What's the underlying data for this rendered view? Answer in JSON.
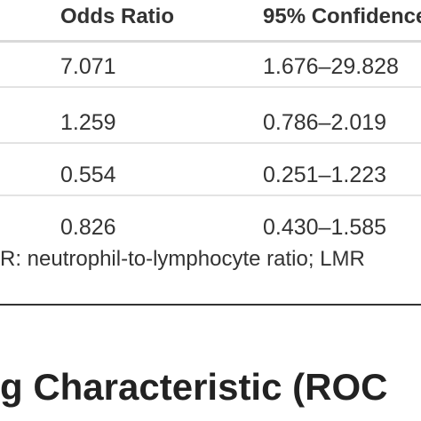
{
  "table": {
    "headers": {
      "odds_ratio": "Odds Ratio",
      "confidence": "95% Confidence"
    },
    "rows": [
      {
        "odds_ratio": "7.071",
        "ci": "1.676–29.828"
      },
      {
        "odds_ratio": "1.259",
        "ci": "0.786–2.019"
      },
      {
        "odds_ratio": "0.554",
        "ci": "0.251–1.223"
      },
      {
        "odds_ratio": "0.826",
        "ci": "0.430–1.585"
      }
    ]
  },
  "footnote": "R: neutrophil-to-lymphocyte ratio; LMR",
  "section_heading": "g Characteristic (ROC"
}
